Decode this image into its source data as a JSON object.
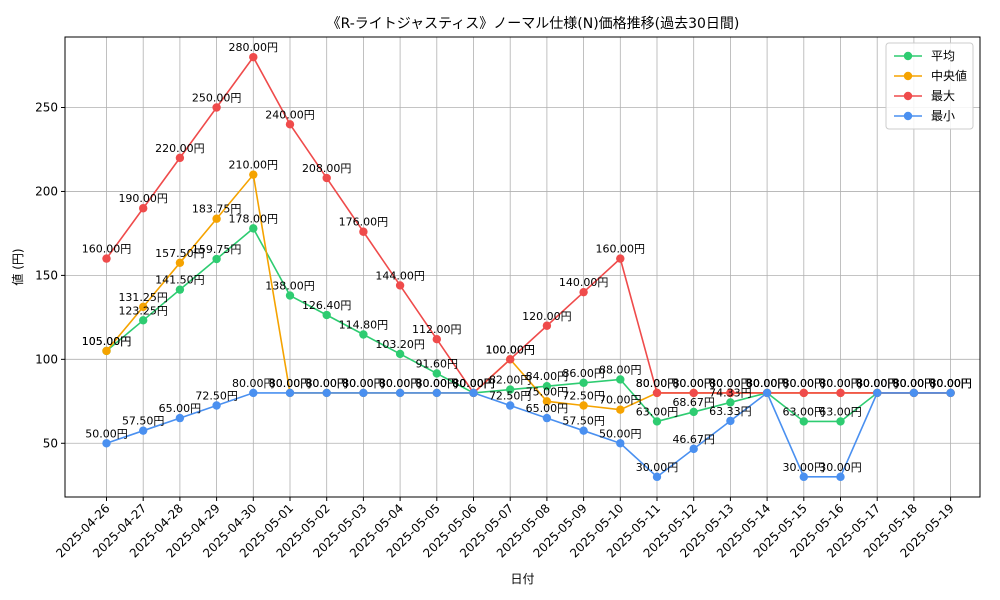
{
  "chart_data": {
    "type": "line",
    "title": "《R-ライトジャスティス》ノーマル仕様(N)価格推移(過去30日間)",
    "xlabel": "日付",
    "ylabel": "値 (円)",
    "ylim": [
      18,
      292
    ],
    "yticks": [
      50,
      100,
      150,
      200,
      250
    ],
    "grid": true,
    "legend_position": "top-right",
    "label_suffix": "円",
    "categories": [
      "2025-04-26",
      "2025-04-27",
      "2025-04-28",
      "2025-04-29",
      "2025-04-30",
      "2025-05-01",
      "2025-05-02",
      "2025-05-03",
      "2025-05-04",
      "2025-05-05",
      "2025-05-06",
      "2025-05-07",
      "2025-05-08",
      "2025-05-09",
      "2025-05-10",
      "2025-05-11",
      "2025-05-12",
      "2025-05-13",
      "2025-05-14",
      "2025-05-15",
      "2025-05-16",
      "2025-05-17",
      "2025-05-18",
      "2025-05-19"
    ],
    "series": [
      {
        "name": "平均",
        "color": "#2ecc71",
        "values": [
          105,
          123.25,
          141.5,
          159.75,
          178,
          138,
          126.4,
          114.8,
          103.2,
          91.6,
          80,
          82,
          84,
          86,
          88,
          63,
          68.67,
          74.33,
          80,
          63,
          63,
          80,
          80,
          80
        ]
      },
      {
        "name": "中央値",
        "color": "#f5a300",
        "values": [
          105,
          131.25,
          157.5,
          183.75,
          210,
          80,
          80,
          80,
          80,
          80,
          80,
          100,
          75,
          72.5,
          70,
          80,
          80,
          80,
          80,
          80,
          80,
          80,
          80,
          80
        ]
      },
      {
        "name": "最大",
        "color": "#ef4b4b",
        "values": [
          160,
          190,
          220,
          250,
          280,
          240,
          208,
          176,
          144,
          112,
          80,
          100,
          120,
          140,
          160,
          80,
          80,
          80,
          80,
          80,
          80,
          80,
          80,
          80
        ]
      },
      {
        "name": "最小",
        "color": "#4a90f0",
        "values": [
          50,
          57.5,
          65,
          72.5,
          80,
          80,
          80,
          80,
          80,
          80,
          80,
          72.5,
          65,
          57.5,
          50,
          30,
          46.67,
          63.33,
          80,
          30,
          30,
          80,
          80,
          80
        ]
      }
    ]
  }
}
